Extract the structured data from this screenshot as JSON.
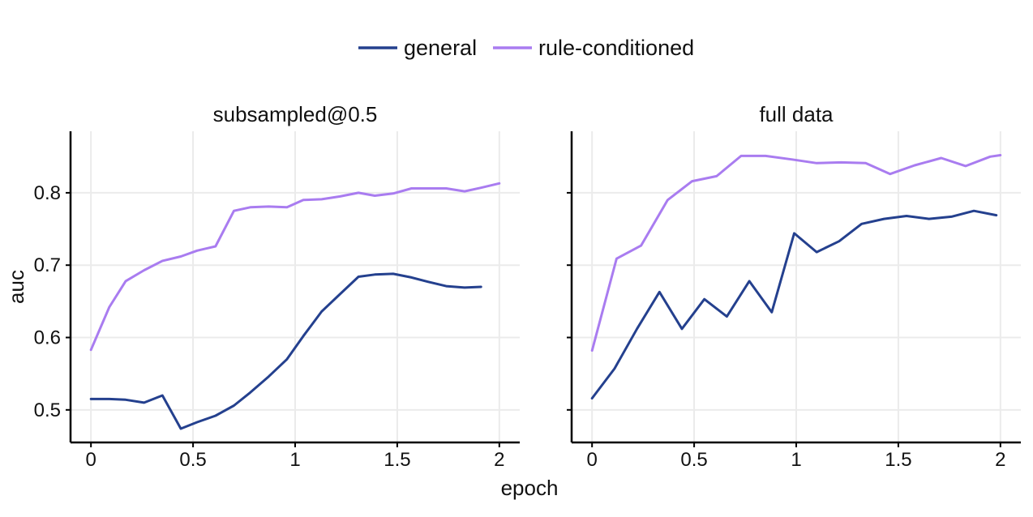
{
  "chart_data": {
    "type": "line",
    "xlabel": "epoch",
    "ylabel": "auc",
    "xlim": [
      -0.1,
      2.1
    ],
    "ylim": [
      0.455,
      0.885
    ],
    "x_ticks": [
      0,
      0.5,
      1,
      1.5,
      2
    ],
    "x_tick_labels": [
      "0",
      "0.5",
      "1",
      "1.5",
      "2"
    ],
    "y_ticks": [
      0.5,
      0.6,
      0.7,
      0.8
    ],
    "y_tick_labels": [
      "0.5",
      "0.6",
      "0.7",
      "0.8"
    ],
    "grid": true,
    "legend_position": "top-center",
    "legend": [
      {
        "name": "general",
        "color": "#24408e"
      },
      {
        "name": "rule-conditioned",
        "color": "#a97cf0"
      }
    ],
    "panels": [
      {
        "title": "subsampled@0.5",
        "series": [
          {
            "name": "general",
            "color": "#24408e",
            "x": [
              0,
              0.09,
              0.17,
              0.26,
              0.35,
              0.44,
              0.52,
              0.61,
              0.7,
              0.78,
              0.87,
              0.96,
              1.04,
              1.13,
              1.22,
              1.31,
              1.39,
              1.48,
              1.57,
              1.65,
              1.74,
              1.83,
              1.91
            ],
            "y": [
              0.515,
              0.515,
              0.514,
              0.51,
              0.52,
              0.474,
              0.483,
              0.492,
              0.506,
              0.524,
              0.546,
              0.57,
              0.602,
              0.636,
              0.66,
              0.684,
              0.687,
              0.688,
              0.683,
              0.677,
              0.671,
              0.669,
              0.67
            ]
          },
          {
            "name": "rule-conditioned",
            "color": "#a97cf0",
            "x": [
              0,
              0.09,
              0.17,
              0.26,
              0.35,
              0.44,
              0.52,
              0.61,
              0.7,
              0.78,
              0.87,
              0.96,
              1.04,
              1.13,
              1.22,
              1.31,
              1.39,
              1.48,
              1.57,
              1.65,
              1.74,
              1.83,
              1.91,
              2.0
            ],
            "y": [
              0.583,
              0.642,
              0.678,
              0.693,
              0.706,
              0.712,
              0.72,
              0.726,
              0.775,
              0.78,
              0.781,
              0.78,
              0.79,
              0.791,
              0.795,
              0.8,
              0.796,
              0.799,
              0.806,
              0.806,
              0.806,
              0.802,
              0.807,
              0.813
            ]
          }
        ]
      },
      {
        "title": "full data",
        "series": [
          {
            "name": "general",
            "color": "#24408e",
            "x": [
              0,
              0.11,
              0.22,
              0.33,
              0.44,
              0.55,
              0.66,
              0.77,
              0.88,
              0.99,
              1.1,
              1.21,
              1.32,
              1.43,
              1.54,
              1.65,
              1.76,
              1.87,
              1.98
            ],
            "y": [
              0.516,
              0.557,
              0.612,
              0.663,
              0.612,
              0.653,
              0.629,
              0.678,
              0.635,
              0.744,
              0.718,
              0.733,
              0.757,
              0.764,
              0.768,
              0.764,
              0.767,
              0.775,
              0.769
            ]
          },
          {
            "name": "rule-conditioned",
            "color": "#a97cf0",
            "x": [
              0,
              0.12,
              0.24,
              0.37,
              0.49,
              0.61,
              0.73,
              0.85,
              0.98,
              1.1,
              1.22,
              1.34,
              1.46,
              1.58,
              1.71,
              1.83,
              1.95,
              2.0
            ],
            "y": [
              0.582,
              0.709,
              0.727,
              0.79,
              0.816,
              0.823,
              0.851,
              0.851,
              0.846,
              0.841,
              0.842,
              0.841,
              0.826,
              0.838,
              0.848,
              0.837,
              0.85,
              0.852
            ]
          }
        ]
      }
    ]
  }
}
